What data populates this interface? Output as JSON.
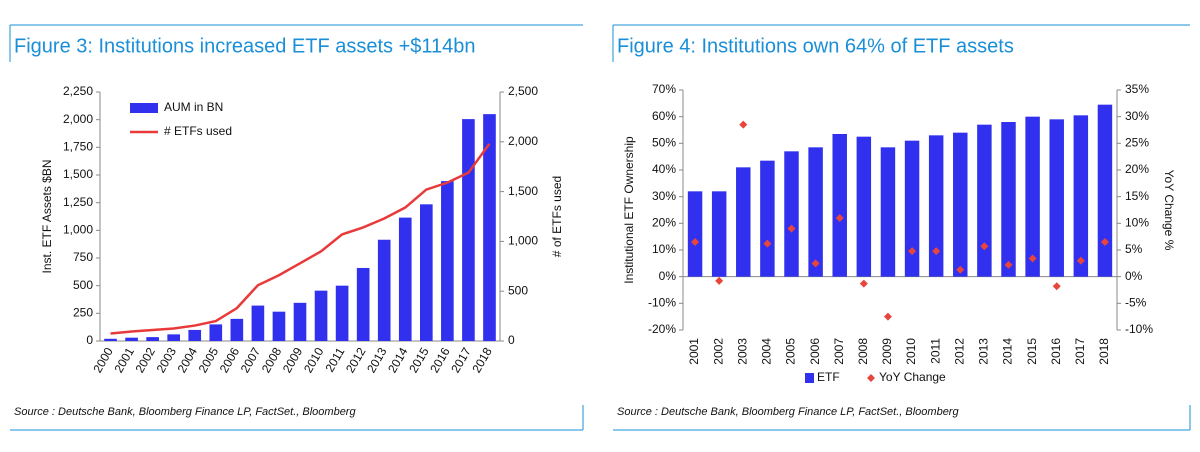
{
  "chart_data": [
    {
      "type": "bar",
      "title": "Figure 3: Institutions increased ETF assets +$114bn",
      "source": "Source : Deutsche Bank, Bloomberg Finance LP, FactSet., Bloomberg",
      "y_label": "Inst. ETF Assets $BN",
      "y2_label": "# of ETFs used",
      "legend": "upper left",
      "categories": [
        "2000",
        "2001",
        "2002",
        "2003",
        "2004",
        "2005",
        "2006",
        "2007",
        "2008",
        "2009",
        "2010",
        "2011",
        "2012",
        "2013",
        "2014",
        "2015",
        "2016",
        "2017",
        "2018"
      ],
      "series": [
        {
          "name": "AUM in BN",
          "type": "bar",
          "color": "#3030ee",
          "values": [
            20,
            30,
            35,
            60,
            100,
            150,
            200,
            320,
            265,
            345,
            455,
            500,
            660,
            915,
            1115,
            1235,
            1445,
            2005,
            2050
          ]
        },
        {
          "name": "# ETFs used",
          "type": "line",
          "axis": "y2",
          "color": "#e83a3a",
          "values": [
            75,
            95,
            110,
            125,
            155,
            200,
            330,
            560,
            660,
            780,
            900,
            1070,
            1140,
            1230,
            1340,
            1520,
            1590,
            1690,
            1980
          ]
        }
      ],
      "ylim": [
        0,
        2250
      ],
      "yticks": [
        0,
        250,
        500,
        750,
        {
          "value": 1000,
          "label": "1,000"
        },
        {
          "value": 1250,
          "label": "1,250"
        },
        {
          "value": 1500,
          "label": "1,500"
        },
        {
          "value": 1750,
          "label": "1,750"
        },
        {
          "value": 2000,
          "label": "2,000"
        },
        {
          "value": 2250,
          "label": "2,250"
        }
      ],
      "y2lim": [
        0,
        2500
      ],
      "y2ticks": [
        0,
        500,
        {
          "value": 1000,
          "label": "1,000"
        },
        {
          "value": 1500,
          "label": "1,500"
        },
        {
          "value": 2000,
          "label": "2,000"
        },
        {
          "value": 2500,
          "label": "2,500"
        }
      ]
    },
    {
      "type": "bar",
      "title": "Figure 4: Institutions own 64% of ETF assets",
      "source": "Source : Deutsche Bank, Bloomberg Finance LP, FactSet., Bloomberg",
      "y_label": "Institutional ETF Ownership",
      "y2_label": "YoY Change %",
      "legend": "bottom",
      "categories": [
        "2001",
        "2002",
        "2003",
        "2004",
        "2005",
        "2006",
        "2007",
        "2008",
        "2009",
        "2010",
        "2011",
        "2012",
        "2013",
        "2014",
        "2015",
        "2016",
        "2017",
        "2018"
      ],
      "series": [
        {
          "name": "ETF",
          "type": "bar",
          "color": "#3030ee",
          "values": [
            32,
            32,
            41,
            43.5,
            47,
            48.5,
            53.5,
            52.5,
            48.5,
            51,
            53,
            54,
            57,
            58,
            60,
            59,
            60.5,
            64.5
          ]
        },
        {
          "name": "YoY Change",
          "type": "scatter",
          "axis": "y2",
          "color": "#e8463c",
          "values": [
            6.5,
            -0.8,
            28.5,
            6.2,
            9,
            2.5,
            11,
            -1.3,
            -7.5,
            4.8,
            4.8,
            1.3,
            5.7,
            2.2,
            3.4,
            -1.8,
            3,
            6.5
          ]
        }
      ],
      "ylim": [
        -20,
        70
      ],
      "yticks": [
        {
          "value": -20,
          "label": "-20%"
        },
        {
          "value": -10,
          "label": "-10%"
        },
        {
          "value": 0,
          "label": "0%"
        },
        {
          "value": 10,
          "label": "10%"
        },
        {
          "value": 20,
          "label": "20%"
        },
        {
          "value": 30,
          "label": "30%"
        },
        {
          "value": 40,
          "label": "40%"
        },
        {
          "value": 50,
          "label": "50%"
        },
        {
          "value": 60,
          "label": "60%"
        },
        {
          "value": 70,
          "label": "70%"
        }
      ],
      "y2lim": [
        -10,
        35
      ],
      "y2ticks": [
        {
          "value": -10,
          "label": "-10%"
        },
        {
          "value": -5,
          "label": "-5%"
        },
        {
          "value": 0,
          "label": "0%"
        },
        {
          "value": 5,
          "label": "5%"
        },
        {
          "value": 10,
          "label": "10%"
        },
        {
          "value": 15,
          "label": "15%"
        },
        {
          "value": 20,
          "label": "20%"
        },
        {
          "value": 25,
          "label": "25%"
        },
        {
          "value": 30,
          "label": "30%"
        },
        {
          "value": 35,
          "label": "35%"
        }
      ]
    }
  ]
}
